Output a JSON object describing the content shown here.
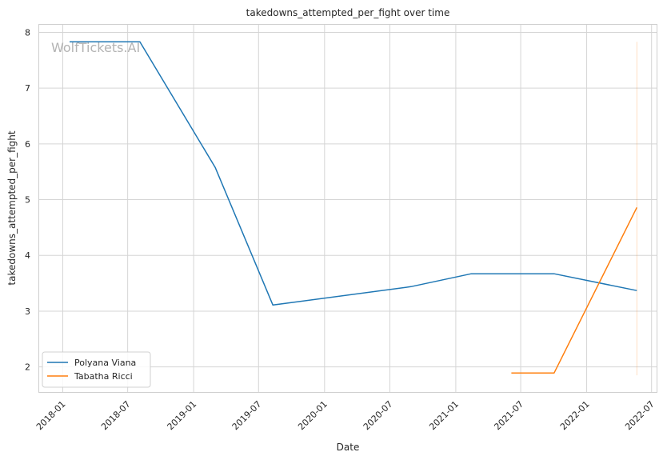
{
  "chart_data": {
    "type": "line",
    "title": "takedowns_attempted_per_fight over time",
    "xlabel": "Date",
    "ylabel": "takedowns_attempted_per_fight",
    "watermark": "WolfTickets.AI",
    "xlim": [
      "2017-10-25",
      "2022-07-15"
    ],
    "ylim": [
      1.55,
      8.15
    ],
    "x_ticks": [
      "2018-01",
      "2018-07",
      "2019-01",
      "2019-07",
      "2020-01",
      "2020-07",
      "2021-01",
      "2021-07",
      "2022-01",
      "2022-07"
    ],
    "y_ticks": [
      2,
      3,
      4,
      5,
      6,
      7,
      8
    ],
    "grid": true,
    "legend_position": "lower-left",
    "series": [
      {
        "name": "Polyana Viana",
        "color": "#1f77b4",
        "points": [
          {
            "x": "2018-01-20",
            "y": 7.83
          },
          {
            "x": "2018-08-04",
            "y": 7.83
          },
          {
            "x": "2019-03-02",
            "y": 5.58
          },
          {
            "x": "2019-08-10",
            "y": 3.11
          },
          {
            "x": "2020-08-29",
            "y": 3.44
          },
          {
            "x": "2021-02-13",
            "y": 3.67
          },
          {
            "x": "2021-10-02",
            "y": 3.67
          },
          {
            "x": "2022-05-21",
            "y": 3.37
          }
        ]
      },
      {
        "name": "Tabatha Ricci",
        "color": "#ff7f0e",
        "points": [
          {
            "x": "2021-06-05",
            "y": 1.89
          },
          {
            "x": "2021-10-02",
            "y": 1.89
          },
          {
            "x": "2022-05-21",
            "y": 4.86
          }
        ],
        "band": {
          "x": "2022-05-21",
          "y_low": 1.85,
          "y_high": 7.83
        }
      }
    ]
  }
}
